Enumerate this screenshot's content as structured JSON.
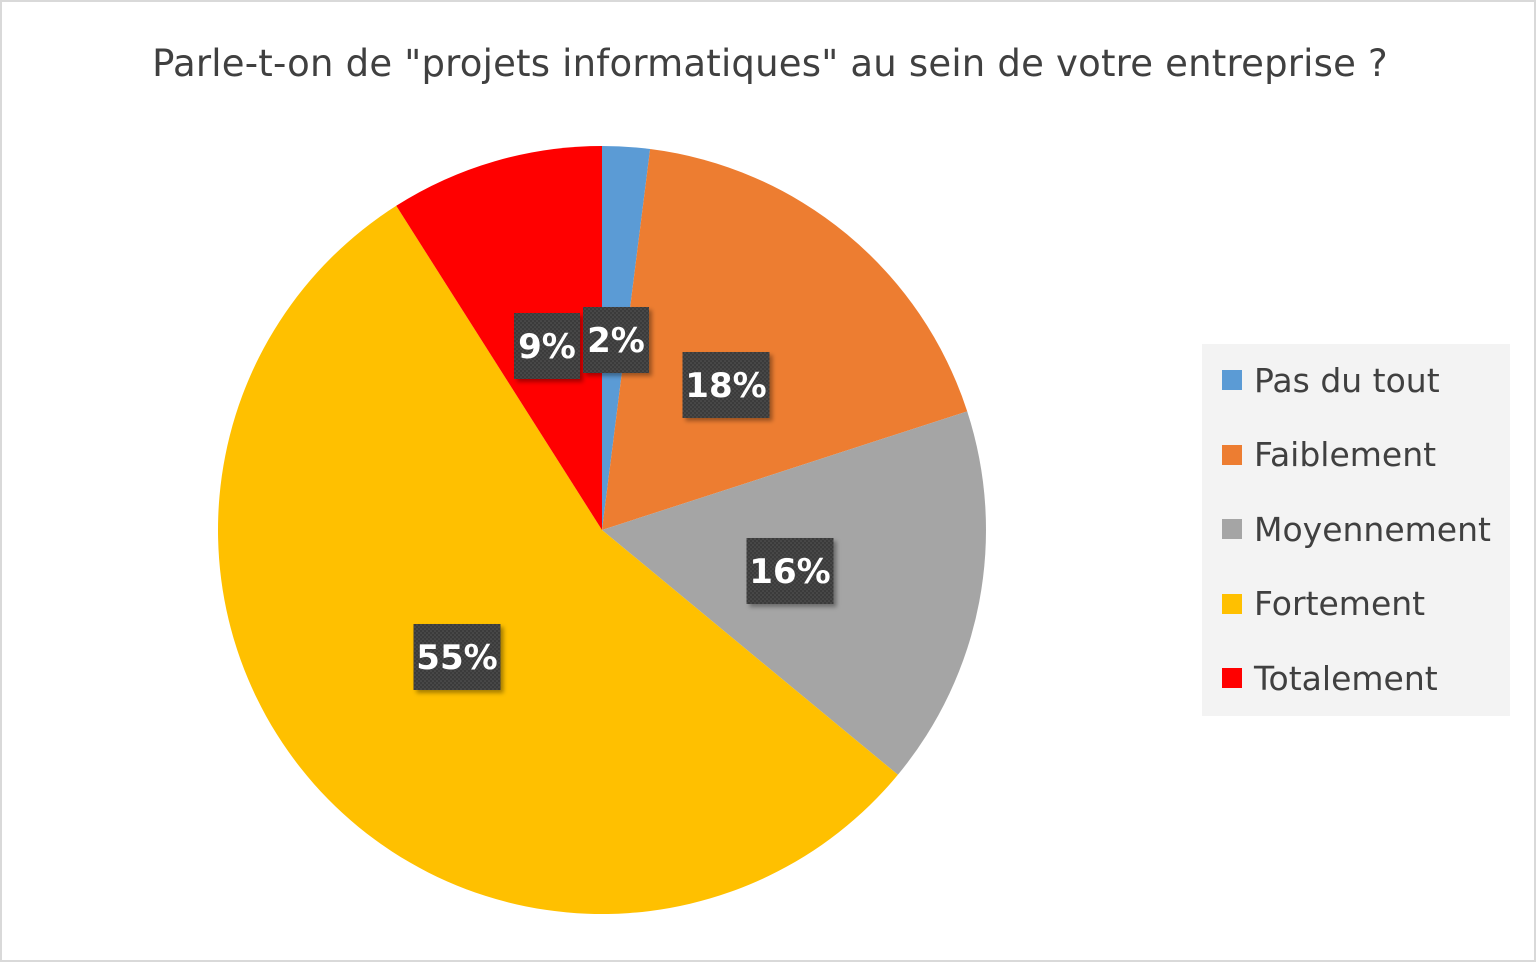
{
  "chart_data": {
    "type": "pie",
    "title": "Parle-t-on de \"projets informatiques\" au sein de votre entreprise ?",
    "categories": [
      "Pas du tout",
      "Faiblement",
      "Moyennement",
      "Fortement",
      "Totalement"
    ],
    "values": [
      2,
      18,
      16,
      55,
      9
    ],
    "data_labels": [
      "2%",
      "18%",
      "16%",
      "55%",
      "9%"
    ],
    "colors": [
      "#5b9bd5",
      "#ed7d31",
      "#a5a5a5",
      "#ffc000",
      "#ff0000"
    ],
    "legend_position": "right",
    "label_style": "dark-box"
  }
}
